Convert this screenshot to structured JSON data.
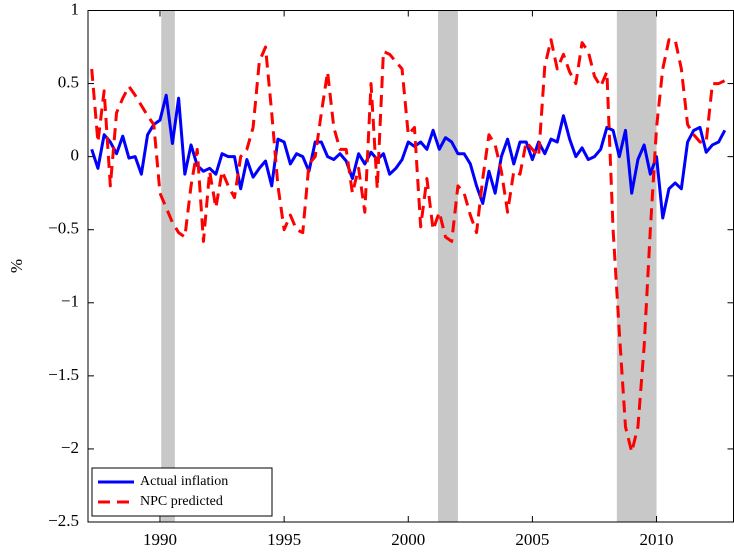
{
  "chart_data": {
    "type": "line",
    "y_label": "%",
    "xlim": [
      1987.1,
      2013.1
    ],
    "ylim": [
      -2.5,
      1
    ],
    "xticks": [
      1990,
      1995,
      2000,
      2005,
      2010
    ],
    "yticks": [
      1,
      0.5,
      0,
      {
        "value": -0.5,
        "label": "−0.5"
      },
      {
        "value": -1,
        "label": "−1"
      },
      {
        "value": -1.5,
        "label": "−1.5"
      },
      {
        "value": -2,
        "label": "−2"
      },
      {
        "value": -2.5,
        "label": "−2.5"
      }
    ],
    "legend_position": "lower-left",
    "shaded_periods": [
      [
        1990.05,
        1990.6
      ],
      [
        2001.2,
        2002.0
      ],
      [
        2008.4,
        2010.0
      ]
    ],
    "shade_color": "#c8c8c8",
    "x": [
      1987.25,
      1987.5,
      1987.75,
      1988,
      1988.25,
      1988.5,
      1988.75,
      1989,
      1989.25,
      1989.5,
      1989.75,
      1990,
      1990.25,
      1990.5,
      1990.75,
      1991,
      1991.25,
      1991.5,
      1991.75,
      1992,
      1992.25,
      1992.5,
      1992.75,
      1993,
      1993.25,
      1993.5,
      1993.75,
      1994,
      1994.25,
      1994.5,
      1994.75,
      1995,
      1995.25,
      1995.5,
      1995.75,
      1996,
      1996.25,
      1996.5,
      1996.75,
      1997,
      1997.25,
      1997.5,
      1997.75,
      1998,
      1998.25,
      1998.5,
      1998.75,
      1999,
      1999.25,
      1999.5,
      1999.75,
      2000,
      2000.25,
      2000.5,
      2000.75,
      2001,
      2001.25,
      2001.5,
      2001.75,
      2002,
      2002.25,
      2002.5,
      2002.75,
      2003,
      2003.25,
      2003.5,
      2003.75,
      2004,
      2004.25,
      2004.5,
      2004.75,
      2005,
      2005.25,
      2005.5,
      2005.75,
      2006,
      2006.25,
      2006.5,
      2006.75,
      2007,
      2007.25,
      2007.5,
      2007.75,
      2008,
      2008.25,
      2008.5,
      2008.75,
      2009,
      2009.25,
      2009.5,
      2009.75,
      2010,
      2010.25,
      2010.5,
      2010.75,
      2011,
      2011.25,
      2011.5,
      2011.75,
      2012,
      2012.25,
      2012.5,
      2012.75
    ],
    "series": [
      {
        "name": "Actual inflation",
        "color": "#0000ff",
        "dash": "solid",
        "values": [
          0.05,
          -0.08,
          0.15,
          0.1,
          0.02,
          0.14,
          -0.01,
          0.0,
          -0.12,
          0.15,
          0.22,
          0.25,
          0.42,
          0.09,
          0.4,
          -0.12,
          0.08,
          -0.06,
          -0.1,
          -0.08,
          -0.12,
          0.02,
          0.0,
          0.0,
          -0.22,
          -0.02,
          -0.14,
          -0.08,
          -0.03,
          -0.2,
          0.12,
          0.1,
          -0.05,
          0.02,
          0.0,
          -0.1,
          0.1,
          0.1,
          0.0,
          -0.02,
          0.02,
          -0.03,
          -0.15,
          0.02,
          -0.05,
          0.03,
          -0.02,
          0.02,
          -0.12,
          -0.08,
          -0.02,
          0.1,
          0.07,
          0.1,
          0.05,
          0.18,
          0.05,
          0.13,
          0.1,
          0.02,
          0.02,
          -0.05,
          -0.2,
          -0.32,
          -0.1,
          -0.25,
          0.0,
          0.12,
          -0.05,
          0.1,
          0.1,
          -0.02,
          0.1,
          0.02,
          0.12,
          0.1,
          0.28,
          0.12,
          0.0,
          0.06,
          -0.02,
          0.0,
          0.05,
          0.2,
          0.18,
          0.0,
          0.18,
          -0.25,
          -0.02,
          0.08,
          -0.12,
          0.0,
          -0.42,
          -0.22,
          -0.18,
          -0.22,
          0.1,
          0.18,
          0.2,
          0.03,
          0.08,
          0.1,
          0.18
        ]
      },
      {
        "name": "NPC predicted",
        "color": "#ff0000",
        "dash": "dashed",
        "values": [
          0.6,
          0.1,
          0.45,
          -0.2,
          0.3,
          0.4,
          0.48,
          0.42,
          0.35,
          0.28,
          0.22,
          -0.25,
          -0.35,
          -0.45,
          -0.52,
          -0.55,
          -0.2,
          0.05,
          -0.58,
          -0.1,
          -0.35,
          -0.1,
          -0.2,
          -0.28,
          0.0,
          0.05,
          0.2,
          0.65,
          0.75,
          0.3,
          -0.2,
          -0.5,
          -0.4,
          -0.5,
          -0.52,
          -0.05,
          0.0,
          0.3,
          0.58,
          0.2,
          0.05,
          0.05,
          -0.25,
          -0.08,
          -0.38,
          0.5,
          -0.22,
          0.72,
          0.7,
          0.65,
          0.6,
          0.15,
          0.2,
          -0.48,
          -0.15,
          -0.5,
          -0.38,
          -0.55,
          -0.58,
          -0.2,
          -0.25,
          -0.4,
          -0.52,
          -0.15,
          0.15,
          0.08,
          -0.1,
          -0.38,
          -0.1,
          -0.12,
          0.1,
          0.05,
          0.0,
          0.62,
          0.8,
          0.6,
          0.7,
          0.58,
          0.5,
          0.78,
          0.72,
          0.55,
          0.48,
          0.58,
          -0.5,
          -1.2,
          -1.85,
          -2.02,
          -1.85,
          -1.3,
          -0.5,
          0.2,
          0.6,
          0.8,
          0.8,
          0.6,
          0.22,
          0.15,
          0.1,
          0.1,
          0.5,
          0.5,
          0.52
        ]
      }
    ]
  }
}
